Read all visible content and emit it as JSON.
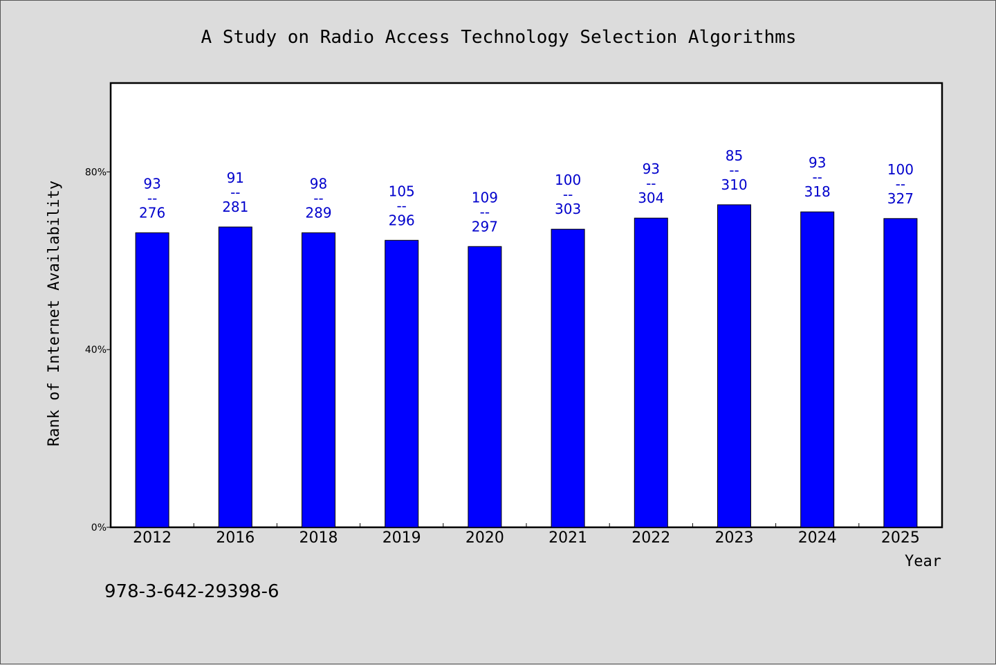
{
  "chart_data": {
    "type": "bar",
    "title": "A Study on Radio Access Technology Selection Algorithms",
    "xlabel": "Year",
    "ylabel": "Rank of Internet Availability",
    "ylim": [
      0,
      100
    ],
    "y_ticks": [
      0,
      40,
      80
    ],
    "y_tick_labels": [
      "0%",
      "40%",
      "80%"
    ],
    "categories": [
      "2012",
      "2016",
      "2018",
      "2019",
      "2020",
      "2021",
      "2022",
      "2023",
      "2024",
      "2025"
    ],
    "values": [
      66.3,
      67.6,
      66.3,
      64.6,
      63.2,
      67.1,
      69.6,
      72.6,
      71.0,
      69.5
    ],
    "data_labels": [
      {
        "rank": "93",
        "sep": "--",
        "total": "276"
      },
      {
        "rank": "91",
        "sep": "--",
        "total": "281"
      },
      {
        "rank": "98",
        "sep": "--",
        "total": "289"
      },
      {
        "rank": "105",
        "sep": "--",
        "total": "296"
      },
      {
        "rank": "109",
        "sep": "--",
        "total": "297"
      },
      {
        "rank": "100",
        "sep": "--",
        "total": "303"
      },
      {
        "rank": "93",
        "sep": "--",
        "total": "304"
      },
      {
        "rank": "85",
        "sep": "--",
        "total": "310"
      },
      {
        "rank": "93",
        "sep": "--",
        "total": "318"
      },
      {
        "rank": "100",
        "sep": "--",
        "total": "327"
      }
    ],
    "bar_color": "#0000ff",
    "label_color": "#0000cc",
    "grid": false,
    "legend": "none"
  },
  "footer_text": "978-3-642-29398-6"
}
